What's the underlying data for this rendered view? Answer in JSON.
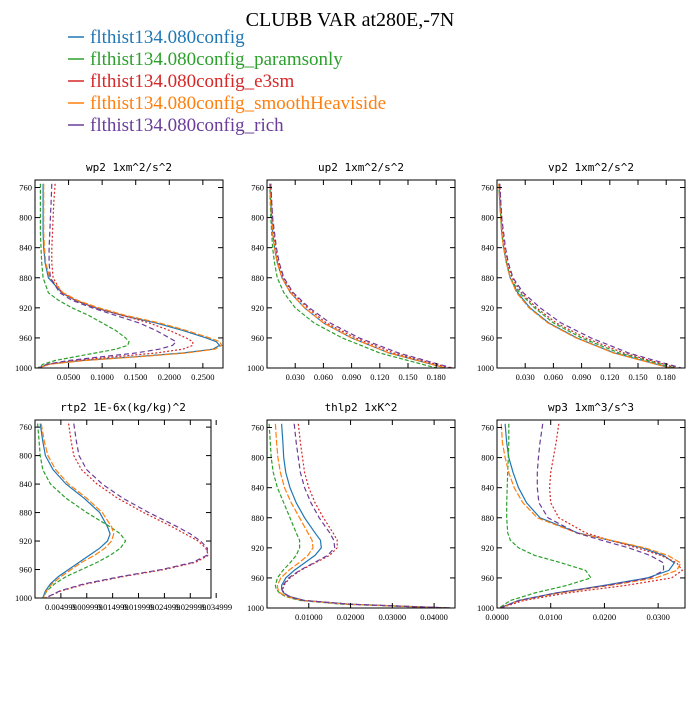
{
  "figure": {
    "title": "CLUBB VAR at280E,-7N",
    "legend": [
      {
        "label": "flthist134.080config",
        "color": "#1f77b4"
      },
      {
        "label": "flthist134.080config_paramsonly",
        "color": "#2ca02c"
      },
      {
        "label": "flthist134.080config_e3sm",
        "color": "#d62728"
      },
      {
        "label": "flthist134.080config_smoothHeaviside",
        "color": "#ff7f0e"
      },
      {
        "label": "flthist134.080config_rich",
        "color": "#6a3d9a"
      }
    ]
  },
  "chart_data": [
    {
      "type": "line",
      "title": "wp2  1xm^2/s^2",
      "ylim": [
        1000,
        750
      ],
      "yticks": [
        760,
        800,
        840,
        880,
        920,
        960,
        1000
      ],
      "xlim": [
        0,
        0.28
      ],
      "xticks": [
        0.05,
        0.1,
        0.15,
        0.2,
        0.25
      ],
      "xticklabels": [
        "0.0500",
        "0.1000",
        "0.1500",
        "0.2000",
        "0.2500"
      ],
      "y": [
        755,
        780,
        800,
        820,
        840,
        860,
        880,
        900,
        910,
        920,
        930,
        940,
        950,
        960,
        965,
        970,
        975,
        980,
        985,
        990,
        995,
        1000
      ],
      "series": [
        {
          "color": "#1f77b4",
          "dash": "",
          "x": [
            0.012,
            0.012,
            0.012,
            0.012,
            0.013,
            0.015,
            0.02,
            0.04,
            0.06,
            0.09,
            0.13,
            0.18,
            0.22,
            0.255,
            0.27,
            0.275,
            0.265,
            0.22,
            0.15,
            0.07,
            0.02,
            0.005
          ]
        },
        {
          "color": "#2ca02c",
          "dash": "4,2",
          "x": [
            0.008,
            0.008,
            0.008,
            0.008,
            0.009,
            0.01,
            0.012,
            0.02,
            0.035,
            0.055,
            0.08,
            0.1,
            0.12,
            0.135,
            0.14,
            0.138,
            0.12,
            0.09,
            0.06,
            0.03,
            0.012,
            0.004
          ]
        },
        {
          "color": "#d62728",
          "dash": "2,2",
          "x": [
            0.03,
            0.028,
            0.027,
            0.026,
            0.025,
            0.025,
            0.027,
            0.04,
            0.06,
            0.09,
            0.13,
            0.17,
            0.2,
            0.225,
            0.235,
            0.235,
            0.22,
            0.18,
            0.12,
            0.06,
            0.02,
            0.006
          ]
        },
        {
          "color": "#ff7f0e",
          "dash": "6,2",
          "x": [
            0.013,
            0.013,
            0.013,
            0.013,
            0.014,
            0.016,
            0.022,
            0.042,
            0.063,
            0.095,
            0.135,
            0.185,
            0.225,
            0.26,
            0.275,
            0.278,
            0.268,
            0.225,
            0.155,
            0.075,
            0.022,
            0.005
          ]
        },
        {
          "color": "#6a3d9a",
          "dash": "5,3",
          "x": [
            0.025,
            0.024,
            0.023,
            0.022,
            0.021,
            0.021,
            0.023,
            0.037,
            0.055,
            0.085,
            0.12,
            0.155,
            0.18,
            0.2,
            0.21,
            0.205,
            0.185,
            0.15,
            0.1,
            0.05,
            0.018,
            0.005
          ]
        }
      ]
    },
    {
      "type": "line",
      "title": "up2  1xm^2/s^2",
      "ylim": [
        1000,
        750
      ],
      "yticks": [
        760,
        800,
        840,
        880,
        920,
        960,
        1000
      ],
      "xlim": [
        0,
        0.2
      ],
      "xticks": [
        0.03,
        0.06,
        0.09,
        0.12,
        0.15,
        0.18
      ],
      "xticklabels": [
        "0.030",
        "0.060",
        "0.090",
        "0.120",
        "0.150",
        "0.180"
      ],
      "y": [
        755,
        780,
        800,
        820,
        840,
        860,
        880,
        900,
        920,
        940,
        960,
        980,
        1000
      ],
      "series": [
        {
          "color": "#1f77b4",
          "dash": "",
          "x": [
            0.003,
            0.004,
            0.005,
            0.006,
            0.008,
            0.011,
            0.016,
            0.025,
            0.04,
            0.06,
            0.09,
            0.13,
            0.19
          ]
        },
        {
          "color": "#2ca02c",
          "dash": "4,2",
          "x": [
            0.003,
            0.0035,
            0.004,
            0.005,
            0.006,
            0.008,
            0.011,
            0.018,
            0.03,
            0.05,
            0.08,
            0.12,
            0.18
          ]
        },
        {
          "color": "#d62728",
          "dash": "2,2",
          "x": [
            0.004,
            0.005,
            0.006,
            0.007,
            0.009,
            0.012,
            0.017,
            0.027,
            0.043,
            0.063,
            0.094,
            0.135,
            0.195
          ]
        },
        {
          "color": "#ff7f0e",
          "dash": "6,2",
          "x": [
            0.003,
            0.004,
            0.005,
            0.006,
            0.008,
            0.011,
            0.016,
            0.025,
            0.04,
            0.06,
            0.09,
            0.13,
            0.19
          ]
        },
        {
          "color": "#6a3d9a",
          "dash": "5,3",
          "x": [
            0.004,
            0.005,
            0.006,
            0.008,
            0.01,
            0.013,
            0.018,
            0.028,
            0.045,
            0.067,
            0.098,
            0.14,
            0.197
          ]
        }
      ]
    },
    {
      "type": "line",
      "title": "vp2  1xm^2/s^2",
      "ylim": [
        1000,
        750
      ],
      "yticks": [
        760,
        800,
        840,
        880,
        920,
        960,
        1000
      ],
      "xlim": [
        0,
        0.2
      ],
      "xticks": [
        0.03,
        0.06,
        0.09,
        0.12,
        0.15,
        0.18
      ],
      "xticklabels": [
        "0.030",
        "0.060",
        "0.090",
        "0.120",
        "0.150",
        "0.180"
      ],
      "y": [
        755,
        780,
        800,
        820,
        840,
        860,
        880,
        900,
        920,
        940,
        960,
        980,
        1000
      ],
      "series": [
        {
          "color": "#1f77b4",
          "dash": "",
          "x": [
            0.002,
            0.003,
            0.004,
            0.005,
            0.007,
            0.01,
            0.014,
            0.022,
            0.035,
            0.055,
            0.085,
            0.125,
            0.185
          ]
        },
        {
          "color": "#2ca02c",
          "dash": "4,2",
          "x": [
            0.002,
            0.003,
            0.004,
            0.005,
            0.007,
            0.01,
            0.014,
            0.024,
            0.04,
            0.06,
            0.09,
            0.13,
            0.19
          ]
        },
        {
          "color": "#d62728",
          "dash": "2,2",
          "x": [
            0.003,
            0.004,
            0.005,
            0.006,
            0.008,
            0.011,
            0.016,
            0.026,
            0.042,
            0.063,
            0.094,
            0.135,
            0.192
          ]
        },
        {
          "color": "#ff7f0e",
          "dash": "6,2",
          "x": [
            0.002,
            0.003,
            0.004,
            0.005,
            0.007,
            0.01,
            0.014,
            0.021,
            0.034,
            0.054,
            0.084,
            0.124,
            0.184
          ]
        },
        {
          "color": "#6a3d9a",
          "dash": "5,3",
          "x": [
            0.003,
            0.004,
            0.005,
            0.007,
            0.009,
            0.012,
            0.017,
            0.028,
            0.046,
            0.068,
            0.1,
            0.14,
            0.196
          ]
        }
      ]
    },
    {
      "type": "line",
      "title": "rtp2  1E-6x(kg/kg)^2",
      "ylim": [
        1000,
        750
      ],
      "yticks": [
        760,
        800,
        840,
        880,
        920,
        960,
        1000
      ],
      "xlim": [
        0,
        0.034
      ],
      "xticks": [
        0.004999,
        0.009999,
        0.014999,
        0.019999,
        0.024999,
        0.029999,
        0.034999
      ],
      "xticklabels": [
        "0.004999",
        "0.009999",
        "0.014999",
        "0.019999",
        "0.024999",
        "0.029999",
        "0.034999"
      ],
      "y": [
        755,
        780,
        800,
        820,
        840,
        860,
        880,
        900,
        910,
        920,
        930,
        940,
        950,
        960,
        970,
        980,
        990,
        1000
      ],
      "series": [
        {
          "color": "#1f77b4",
          "dash": "",
          "x": [
            0.001,
            0.0015,
            0.002,
            0.0035,
            0.006,
            0.0095,
            0.0125,
            0.014,
            0.0145,
            0.014,
            0.0125,
            0.0105,
            0.0085,
            0.0065,
            0.0045,
            0.003,
            0.002,
            0.0015
          ]
        },
        {
          "color": "#2ca02c",
          "dash": "4,2",
          "x": [
            0.0005,
            0.0008,
            0.001,
            0.0015,
            0.003,
            0.006,
            0.01,
            0.0145,
            0.0165,
            0.0175,
            0.0165,
            0.0145,
            0.012,
            0.009,
            0.006,
            0.0038,
            0.0023,
            0.0015
          ]
        },
        {
          "color": "#d62728",
          "dash": "2,2",
          "x": [
            0.0065,
            0.007,
            0.0075,
            0.009,
            0.012,
            0.016,
            0.021,
            0.0265,
            0.029,
            0.0315,
            0.033,
            0.0335,
            0.031,
            0.025,
            0.017,
            0.01,
            0.005,
            0.002
          ]
        },
        {
          "color": "#ff7f0e",
          "dash": "6,2",
          "x": [
            0.0012,
            0.0018,
            0.0025,
            0.004,
            0.0065,
            0.01,
            0.013,
            0.0148,
            0.0152,
            0.0148,
            0.0135,
            0.0115,
            0.009,
            0.007,
            0.005,
            0.0033,
            0.0022,
            0.0016
          ]
        },
        {
          "color": "#6a3d9a",
          "dash": "5,3",
          "x": [
            0.0075,
            0.008,
            0.0085,
            0.01,
            0.013,
            0.017,
            0.022,
            0.0275,
            0.03,
            0.032,
            0.0333,
            0.0332,
            0.0305,
            0.0245,
            0.0165,
            0.0095,
            0.0048,
            0.002
          ]
        }
      ]
    },
    {
      "type": "line",
      "title": "thlp2  1xK^2",
      "ylim": [
        1000,
        750
      ],
      "yticks": [
        760,
        800,
        840,
        880,
        920,
        960,
        1000
      ],
      "xlim": [
        0,
        0.045
      ],
      "xticks": [
        0.01,
        0.02,
        0.03,
        0.04
      ],
      "xticklabels": [
        "0.01000",
        "0.02000",
        "0.03000",
        "0.04000"
      ],
      "y": [
        755,
        780,
        800,
        820,
        840,
        860,
        880,
        900,
        910,
        920,
        930,
        940,
        950,
        960,
        970,
        975,
        980,
        985,
        990,
        995,
        1000
      ],
      "series": [
        {
          "color": "#1f77b4",
          "dash": "",
          "x": [
            0.0035,
            0.0038,
            0.004,
            0.0045,
            0.0055,
            0.007,
            0.009,
            0.0115,
            0.0128,
            0.013,
            0.0115,
            0.009,
            0.0065,
            0.0045,
            0.0035,
            0.0035,
            0.004,
            0.0055,
            0.009,
            0.02,
            0.044
          ]
        },
        {
          "color": "#2ca02c",
          "dash": "4,2",
          "x": [
            0.0005,
            0.0008,
            0.001,
            0.0015,
            0.0025,
            0.004,
            0.0055,
            0.007,
            0.0078,
            0.0078,
            0.007,
            0.0055,
            0.0038,
            0.0025,
            0.002,
            0.0022,
            0.003,
            0.0045,
            0.008,
            0.018,
            0.043
          ]
        },
        {
          "color": "#d62728",
          "dash": "2,2",
          "x": [
            0.0075,
            0.008,
            0.0085,
            0.009,
            0.01,
            0.0115,
            0.0135,
            0.0158,
            0.0168,
            0.0168,
            0.015,
            0.0115,
            0.008,
            0.0055,
            0.004,
            0.0038,
            0.004,
            0.0055,
            0.009,
            0.02,
            0.044
          ]
        },
        {
          "color": "#ff7f0e",
          "dash": "6,2",
          "x": [
            0.002,
            0.0023,
            0.0026,
            0.0032,
            0.0042,
            0.0058,
            0.0078,
            0.0098,
            0.0108,
            0.011,
            0.0098,
            0.0076,
            0.0052,
            0.0033,
            0.0025,
            0.0026,
            0.0032,
            0.0048,
            0.0085,
            0.019,
            0.043
          ]
        },
        {
          "color": "#6a3d9a",
          "dash": "5,3",
          "x": [
            0.0065,
            0.007,
            0.0075,
            0.008,
            0.009,
            0.0105,
            0.0125,
            0.015,
            0.016,
            0.0162,
            0.0145,
            0.0112,
            0.0078,
            0.0052,
            0.0038,
            0.0036,
            0.0039,
            0.0053,
            0.0088,
            0.0195,
            0.0435
          ]
        }
      ]
    },
    {
      "type": "line",
      "title": "wp3  1xm^3/s^3",
      "ylim": [
        1000,
        750
      ],
      "yticks": [
        760,
        800,
        840,
        880,
        920,
        960,
        1000
      ],
      "xlim": [
        0,
        0.035
      ],
      "xticks": [
        0,
        0.01,
        0.02,
        0.03
      ],
      "xticklabels": [
        "0.0000",
        "0.0100",
        "0.0200",
        "0.0300"
      ],
      "y": [
        755,
        780,
        800,
        820,
        840,
        860,
        880,
        900,
        910,
        920,
        930,
        940,
        950,
        960,
        970,
        980,
        990,
        1000
      ],
      "series": [
        {
          "color": "#1f77b4",
          "dash": "",
          "x": [
            0.0015,
            0.0018,
            0.0022,
            0.003,
            0.004,
            0.0055,
            0.008,
            0.015,
            0.021,
            0.027,
            0.031,
            0.033,
            0.032,
            0.028,
            0.02,
            0.011,
            0.004,
            0.0005
          ]
        },
        {
          "color": "#2ca02c",
          "dash": "4,2",
          "x": [
            0.0022,
            0.0022,
            0.0021,
            0.002,
            0.0019,
            0.0018,
            0.0018,
            0.002,
            0.0025,
            0.004,
            0.007,
            0.012,
            0.0165,
            0.0175,
            0.013,
            0.007,
            0.0025,
            0.0004
          ]
        },
        {
          "color": "#d62728",
          "dash": "2,2",
          "x": [
            0.0115,
            0.011,
            0.0105,
            0.01,
            0.0098,
            0.01,
            0.0115,
            0.0165,
            0.021,
            0.026,
            0.0305,
            0.0335,
            0.0345,
            0.0325,
            0.024,
            0.013,
            0.005,
            0.0006
          ]
        },
        {
          "color": "#ff7f0e",
          "dash": "6,2",
          "x": [
            0.0008,
            0.001,
            0.0015,
            0.0022,
            0.0032,
            0.0048,
            0.0075,
            0.0148,
            0.0212,
            0.0275,
            0.0318,
            0.0342,
            0.0335,
            0.0295,
            0.021,
            0.0115,
            0.0042,
            0.0005
          ]
        },
        {
          "color": "#6a3d9a",
          "dash": "5,3",
          "x": [
            0.0085,
            0.008,
            0.0077,
            0.0075,
            0.0075,
            0.0078,
            0.0095,
            0.0148,
            0.0195,
            0.0245,
            0.0285,
            0.031,
            0.031,
            0.0285,
            0.0205,
            0.011,
            0.0042,
            0.0005
          ]
        }
      ]
    }
  ]
}
